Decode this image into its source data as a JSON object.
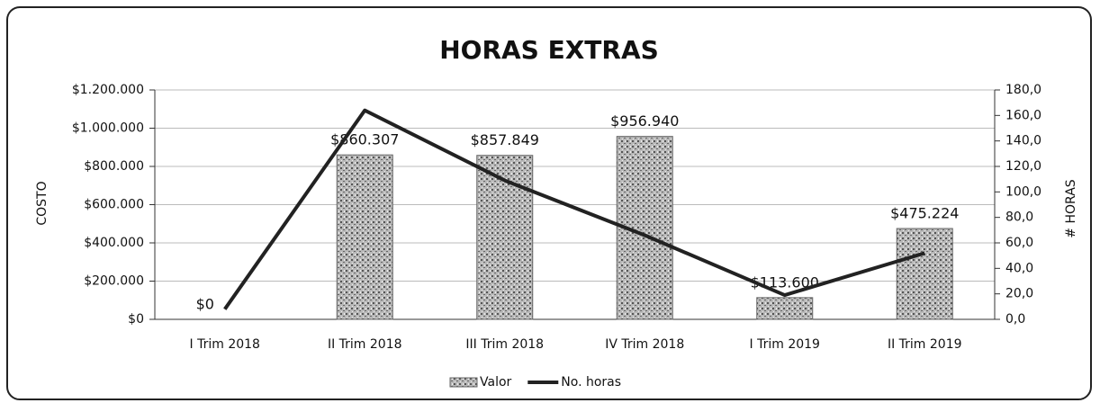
{
  "chart_data": {
    "type": "bar",
    "title": "HORAS EXTRAS",
    "y_label": "COSTO",
    "y2_label": "# HORAS",
    "categories": [
      "I Trim 2018",
      "II Trim 2018",
      "III Trim 2018",
      "IV Trim 2018",
      "I Trim 2019",
      "II Trim 2019"
    ],
    "series": [
      {
        "name": "Valor",
        "type": "bar",
        "color": "#9a9a9a",
        "values": [
          0,
          860307,
          857849,
          956940,
          113600,
          475224
        ],
        "value_labels": [
          "$0",
          "$860.307",
          "$857.849",
          "$956.940",
          "$113.600",
          "$475.224"
        ]
      },
      {
        "name": "No. horas",
        "type": "line",
        "axis": "y2",
        "color": "#222222",
        "values": [
          8,
          164,
          109,
          66,
          19,
          52
        ]
      }
    ],
    "ylim": [
      0,
      1200000
    ],
    "yticks": [
      {
        "value": 0,
        "label": "$0"
      },
      {
        "value": 200000,
        "label": "$200.000"
      },
      {
        "value": 400000,
        "label": "$400.000"
      },
      {
        "value": 600000,
        "label": "$600.000"
      },
      {
        "value": 800000,
        "label": "$800.000"
      },
      {
        "value": 1000000,
        "label": "$1.000.000"
      },
      {
        "value": 1200000,
        "label": "$1.200.000"
      }
    ],
    "y2lim": [
      0,
      180
    ],
    "y2ticks": [
      {
        "value": 0,
        "label": "0,0"
      },
      {
        "value": 20,
        "label": "20,0"
      },
      {
        "value": 40,
        "label": "40,0"
      },
      {
        "value": 60,
        "label": "60,0"
      },
      {
        "value": 80,
        "label": "80,0"
      },
      {
        "value": 100,
        "label": "100,0"
      },
      {
        "value": 120,
        "label": "120,0"
      },
      {
        "value": 140,
        "label": "140,0"
      },
      {
        "value": 160,
        "label": "160,0"
      },
      {
        "value": 180,
        "label": "180,0"
      }
    ],
    "grid": true,
    "legend": "bottom"
  }
}
